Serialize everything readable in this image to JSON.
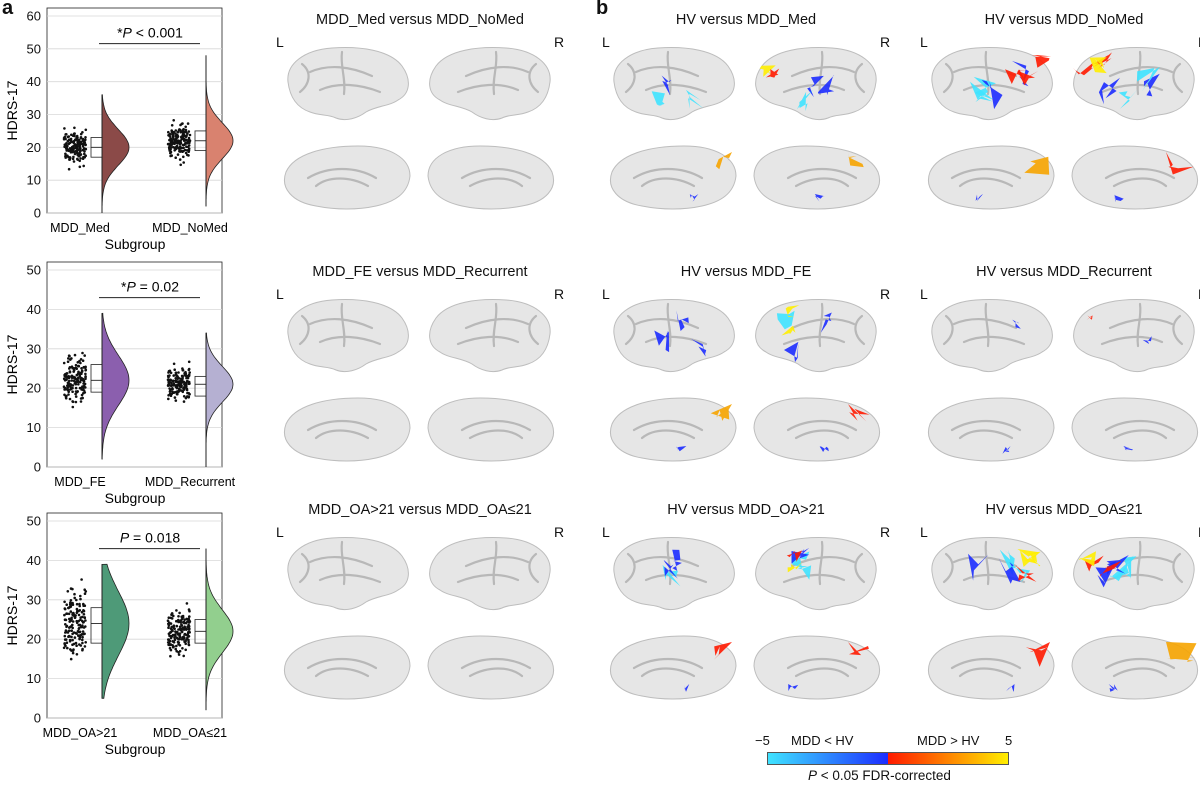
{
  "panel_a_letter": "a",
  "panel_b_letter": "b",
  "chart_data": [
    {
      "type": "raincloud",
      "ylabel": "HDRS-17",
      "xlabel": "Subgroup",
      "ylim": [
        0,
        60
      ],
      "yticks": [
        0,
        10,
        20,
        30,
        40,
        50,
        60
      ],
      "annotation": {
        "star": "*",
        "p": "P",
        "rest": " < 0.001"
      },
      "groups": [
        {
          "name": "MDD_Med",
          "median": 20,
          "q1": 17,
          "q3": 23,
          "min": 0,
          "max": 36,
          "color": "#8b4a48"
        },
        {
          "name": "MDD_NoMed",
          "median": 22,
          "q1": 19,
          "q3": 25,
          "min": 2,
          "max": 48,
          "color": "#d9826f"
        }
      ]
    },
    {
      "type": "raincloud",
      "ylabel": "HDRS-17",
      "xlabel": "Subgroup",
      "ylim": [
        0,
        50
      ],
      "yticks": [
        0,
        10,
        20,
        30,
        40,
        50
      ],
      "annotation": {
        "star": "*",
        "p": "P",
        "rest": " = 0.02"
      },
      "groups": [
        {
          "name": "MDD_FE",
          "median": 22,
          "q1": 19,
          "q3": 26,
          "min": 2,
          "max": 39,
          "color": "#8b5fae"
        },
        {
          "name": "MDD_Recurrent",
          "median": 21,
          "q1": 18,
          "q3": 23,
          "min": 0,
          "max": 34,
          "color": "#b5b0d2"
        }
      ]
    },
    {
      "type": "raincloud",
      "ylabel": "HDRS-17",
      "xlabel": "Subgroup",
      "ylim": [
        0,
        50
      ],
      "yticks": [
        0,
        10,
        20,
        30,
        40,
        50
      ],
      "annotation": {
        "star": "",
        "p": "P",
        "rest": " = 0.018"
      },
      "groups": [
        {
          "name": "MDD_OA>21",
          "median": 24,
          "q1": 19,
          "q3": 28,
          "min": 5,
          "max": 39,
          "color": "#4e9a78"
        },
        {
          "name": "MDD_OA≤21",
          "median": 22,
          "q1": 19,
          "q3": 25,
          "min": 2,
          "max": 43,
          "color": "#92cf8e"
        }
      ]
    }
  ],
  "brain_panels": [
    {
      "title": "MDD_Med versus MDD_NoMed",
      "left": "L",
      "right": "R",
      "pattern": "none"
    },
    {
      "title": "HV versus MDD_Med",
      "left": "L",
      "right": "R",
      "pattern": "mixed"
    },
    {
      "title": "HV versus MDD_NoMed",
      "left": "L",
      "right": "R",
      "pattern": "strong"
    },
    {
      "title": "MDD_FE versus MDD_Recurrent",
      "left": "L",
      "right": "R",
      "pattern": "none"
    },
    {
      "title": "HV versus MDD_FE",
      "left": "L",
      "right": "R",
      "pattern": "mixed"
    },
    {
      "title": "HV versus MDD_Recurrent",
      "left": "L",
      "right": "R",
      "pattern": "faint"
    },
    {
      "title": "MDD_OA>21 versus MDD_OA≤21",
      "left": "L",
      "right": "R",
      "pattern": "none"
    },
    {
      "title": "HV versus MDD_OA>21",
      "left": "L",
      "right": "R",
      "pattern": "mixed"
    },
    {
      "title": "HV versus MDD_OA≤21",
      "left": "L",
      "right": "R",
      "pattern": "strong"
    }
  ],
  "colorbar": {
    "min_label": "−5",
    "neg_label": "MDD < HV",
    "pos_label": "MDD > HV",
    "max_label": "5",
    "caption_p": "P",
    "caption_rest": " < 0.05 FDR-corrected",
    "colors": {
      "neg_light": "#3fe3ff",
      "neg_dark": "#1c2cff",
      "pos_dark": "#ff1a00",
      "pos_light": "#ffee00"
    }
  }
}
